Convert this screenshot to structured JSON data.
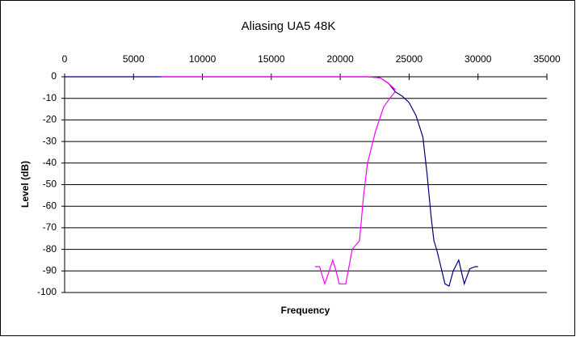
{
  "chart_data": {
    "type": "line",
    "title": "Aliasing UA5 48K",
    "x_label": "Frequency",
    "y_label": "Level (dB)",
    "xlim": [
      0,
      35000
    ],
    "xticks": [
      0,
      5000,
      10000,
      15000,
      20000,
      25000,
      30000,
      35000
    ],
    "ylim": [
      -100,
      0
    ],
    "yticks": [
      0,
      -10,
      -20,
      -30,
      -40,
      -50,
      -60,
      -70,
      -80,
      -90,
      -100
    ],
    "grid": true,
    "series": [
      {
        "color": "#000080",
        "x": [
          0,
          5000,
          10000,
          15000,
          20000,
          22000,
          22900,
          23500,
          24000,
          24500,
          25000,
          25500,
          26000,
          26300,
          26600,
          26800,
          27000,
          27300,
          27600,
          27900,
          28200,
          28600,
          29000,
          29400,
          29800,
          30000
        ],
        "values": [
          0,
          0,
          0,
          0,
          0,
          0,
          -0.5,
          -3,
          -7,
          -9,
          -12,
          -18,
          -28,
          -45,
          -65,
          -76,
          -80,
          -88,
          -96,
          -97,
          -90,
          -85,
          -96,
          -89,
          -88,
          -88
        ]
      },
      {
        "color": "#ff00ff",
        "x": [
          7000,
          10000,
          15000,
          20000,
          22000,
          22900,
          23500,
          24000,
          null,
          18170,
          18500,
          18875,
          19200,
          19460,
          19700,
          19930,
          20400,
          20870,
          21400,
          21700,
          21980,
          22570,
          23150,
          23600,
          23970
        ],
        "values": [
          0,
          0,
          0,
          0,
          0,
          -0.5,
          -3,
          -6,
          null,
          -88,
          -88,
          -96,
          -90,
          -85,
          -90,
          -96,
          -96,
          -80,
          -76,
          -55,
          -40,
          -25,
          -14,
          -10,
          -7
        ]
      }
    ]
  }
}
